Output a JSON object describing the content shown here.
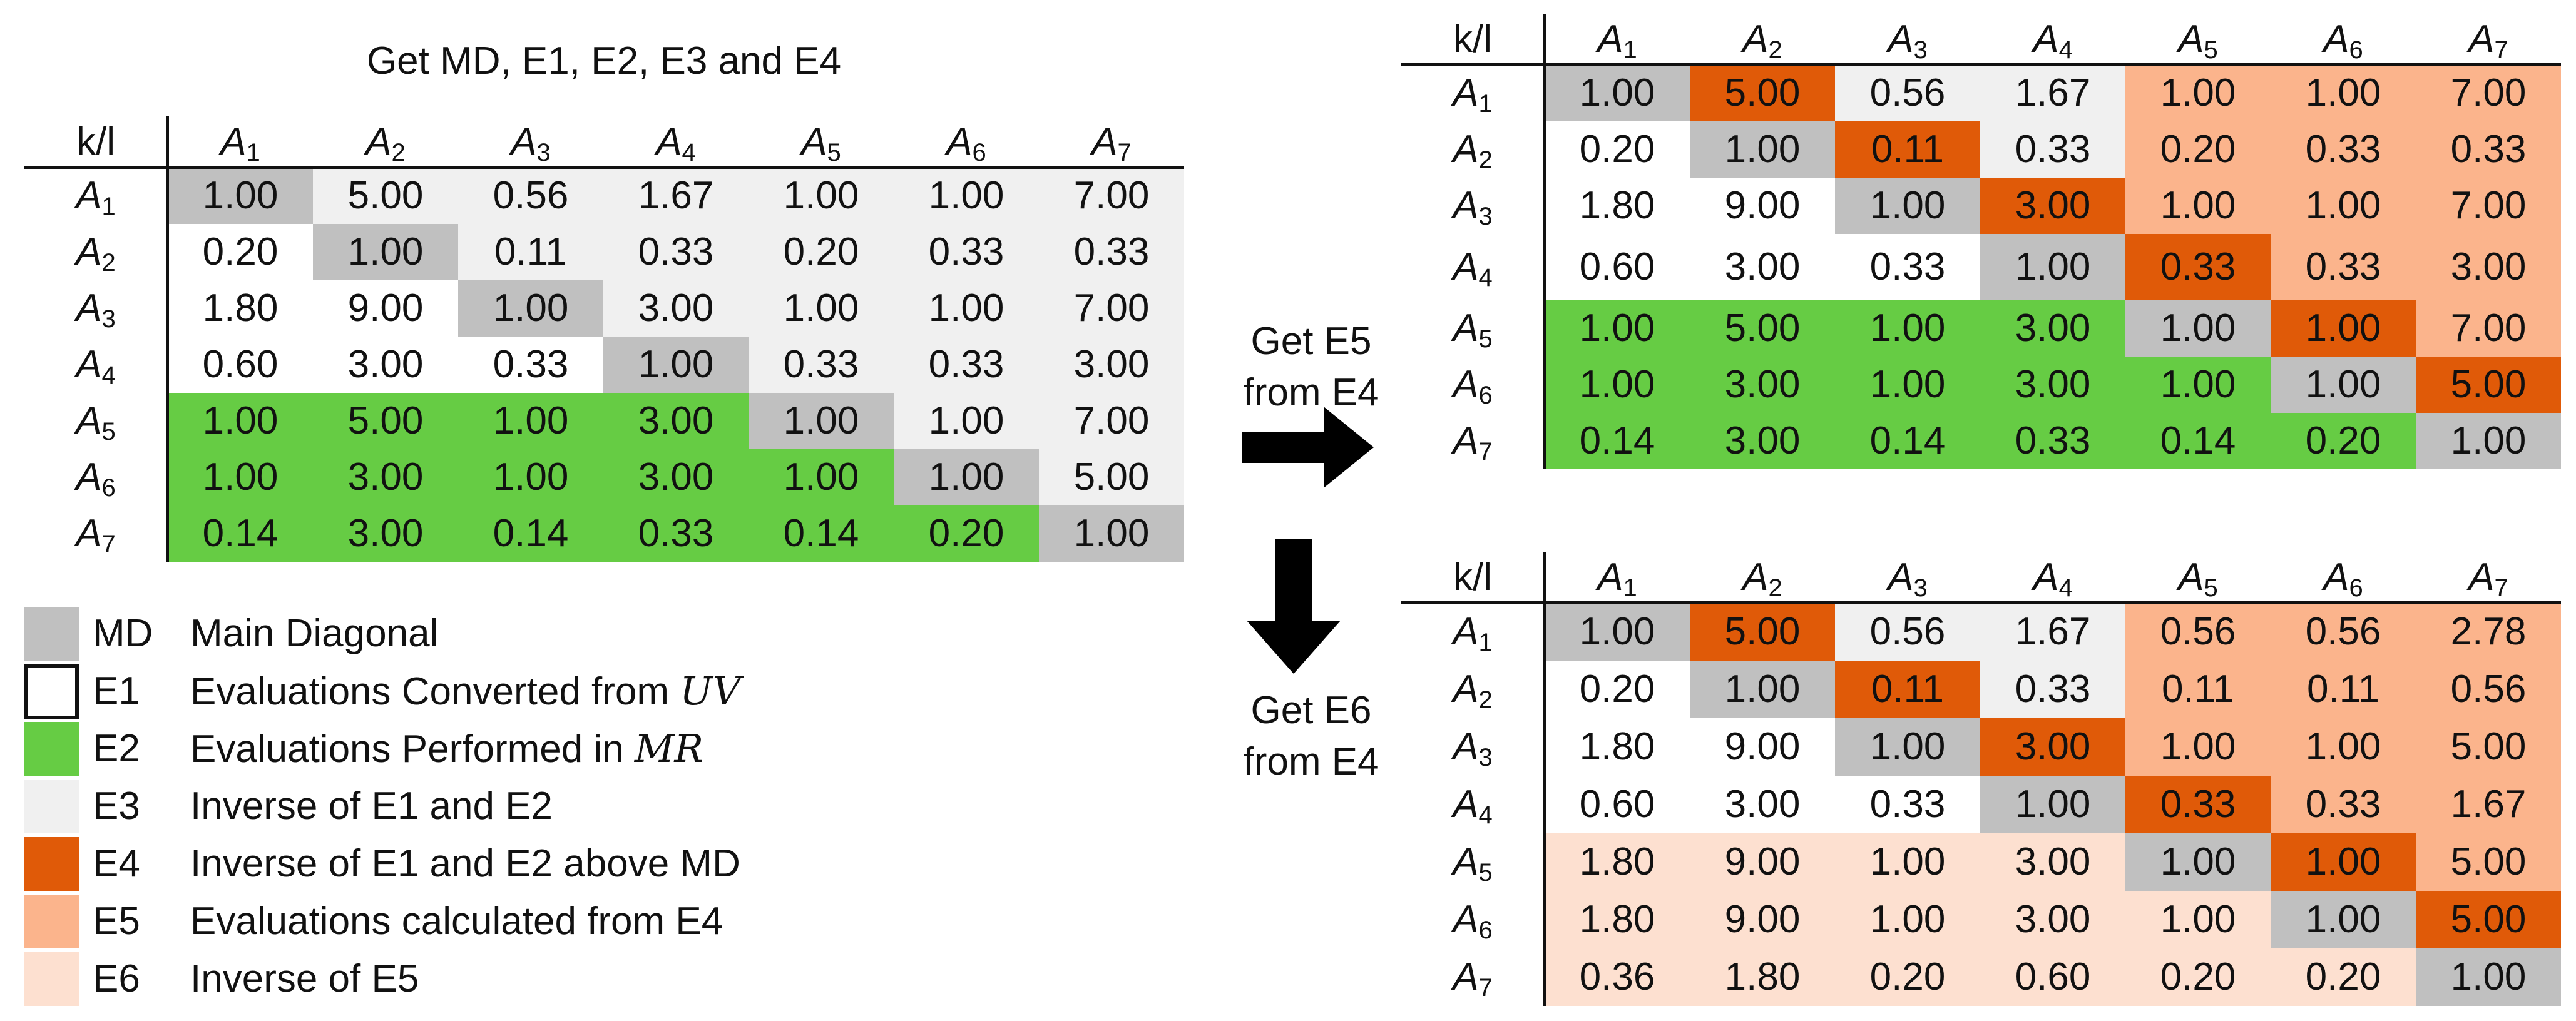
{
  "left_title": "Get MD, E1, E2, E3 and E4",
  "header_corner": "k/l",
  "columns": [
    "A1",
    "A2",
    "A3",
    "A4",
    "A5",
    "A6",
    "A7"
  ],
  "rows": [
    "A1",
    "A2",
    "A3",
    "A4",
    "A5",
    "A6",
    "A7"
  ],
  "colors": {
    "MD": "#c0c0c0",
    "E1": "#ffffff",
    "E2": "#66cc44",
    "E3": "#f0f0f0",
    "E4": "#e05a08",
    "E5": "#fbb48c",
    "E6": "#fde0d0"
  },
  "matrix_main": {
    "values": [
      [
        "1.00",
        "5.00",
        "0.56",
        "1.67",
        "1.00",
        "1.00",
        "7.00"
      ],
      [
        "0.20",
        "1.00",
        "0.11",
        "0.33",
        "0.20",
        "0.33",
        "0.33"
      ],
      [
        "1.80",
        "9.00",
        "1.00",
        "3.00",
        "1.00",
        "1.00",
        "7.00"
      ],
      [
        "0.60",
        "3.00",
        "0.33",
        "1.00",
        "0.33",
        "0.33",
        "3.00"
      ],
      [
        "1.00",
        "5.00",
        "1.00",
        "3.00",
        "1.00",
        "1.00",
        "7.00"
      ],
      [
        "1.00",
        "3.00",
        "1.00",
        "3.00",
        "1.00",
        "1.00",
        "5.00"
      ],
      [
        "0.14",
        "3.00",
        "0.14",
        "0.33",
        "0.14",
        "0.20",
        "1.00"
      ]
    ],
    "categories": [
      [
        "MD",
        "E3",
        "E3",
        "E3",
        "E3",
        "E3",
        "E3"
      ],
      [
        "E1",
        "MD",
        "E3",
        "E3",
        "E3",
        "E3",
        "E3"
      ],
      [
        "E1",
        "E1",
        "MD",
        "E3",
        "E3",
        "E3",
        "E3"
      ],
      [
        "E1",
        "E1",
        "E1",
        "MD",
        "E3",
        "E3",
        "E3"
      ],
      [
        "E2",
        "E2",
        "E2",
        "E2",
        "MD",
        "E3",
        "E3"
      ],
      [
        "E2",
        "E2",
        "E2",
        "E2",
        "E2",
        "MD",
        "E3"
      ],
      [
        "E2",
        "E2",
        "E2",
        "E2",
        "E2",
        "E2",
        "MD"
      ]
    ]
  },
  "matrix_e5": {
    "values": [
      [
        "1.00",
        "5.00",
        "0.56",
        "1.67",
        "1.00",
        "1.00",
        "7.00"
      ],
      [
        "0.20",
        "1.00",
        "0.11",
        "0.33",
        "0.20",
        "0.33",
        "0.33"
      ],
      [
        "1.80",
        "9.00",
        "1.00",
        "3.00",
        "1.00",
        "1.00",
        "7.00"
      ],
      [
        "0.60",
        "3.00",
        "0.33",
        "1.00",
        "0.33",
        "0.33",
        "3.00"
      ],
      [
        "1.00",
        "5.00",
        "1.00",
        "3.00",
        "1.00",
        "1.00",
        "7.00"
      ],
      [
        "1.00",
        "3.00",
        "1.00",
        "3.00",
        "1.00",
        "1.00",
        "5.00"
      ],
      [
        "0.14",
        "3.00",
        "0.14",
        "0.33",
        "0.14",
        "0.20",
        "1.00"
      ]
    ],
    "categories": [
      [
        "MD",
        "E4",
        "E3",
        "E3",
        "E5",
        "E5",
        "E5"
      ],
      [
        "E1",
        "MD",
        "E4",
        "E3",
        "E5",
        "E5",
        "E5"
      ],
      [
        "E1",
        "E1",
        "MD",
        "E4",
        "E5",
        "E5",
        "E5"
      ],
      [
        "E1",
        "E1",
        "E1",
        "MD",
        "E4",
        "E5",
        "E5"
      ],
      [
        "E2",
        "E2",
        "E2",
        "E2",
        "MD",
        "E4",
        "E5"
      ],
      [
        "E2",
        "E2",
        "E2",
        "E2",
        "E2",
        "MD",
        "E4"
      ],
      [
        "E2",
        "E2",
        "E2",
        "E2",
        "E2",
        "E2",
        "MD"
      ]
    ]
  },
  "matrix_e6": {
    "values": [
      [
        "1.00",
        "5.00",
        "0.56",
        "1.67",
        "0.56",
        "0.56",
        "2.78"
      ],
      [
        "0.20",
        "1.00",
        "0.11",
        "0.33",
        "0.11",
        "0.11",
        "0.56"
      ],
      [
        "1.80",
        "9.00",
        "1.00",
        "3.00",
        "1.00",
        "1.00",
        "5.00"
      ],
      [
        "0.60",
        "3.00",
        "0.33",
        "1.00",
        "0.33",
        "0.33",
        "1.67"
      ],
      [
        "1.80",
        "9.00",
        "1.00",
        "3.00",
        "1.00",
        "1.00",
        "5.00"
      ],
      [
        "1.80",
        "9.00",
        "1.00",
        "3.00",
        "1.00",
        "1.00",
        "5.00"
      ],
      [
        "0.36",
        "1.80",
        "0.20",
        "0.60",
        "0.20",
        "0.20",
        "1.00"
      ]
    ],
    "categories": [
      [
        "MD",
        "E4",
        "E3",
        "E3",
        "E5",
        "E5",
        "E5"
      ],
      [
        "E1",
        "MD",
        "E4",
        "E3",
        "E5",
        "E5",
        "E5"
      ],
      [
        "E1",
        "E1",
        "MD",
        "E4",
        "E5",
        "E5",
        "E5"
      ],
      [
        "E1",
        "E1",
        "E1",
        "MD",
        "E4",
        "E5",
        "E5"
      ],
      [
        "E6",
        "E6",
        "E6",
        "E6",
        "MD",
        "E4",
        "E5"
      ],
      [
        "E6",
        "E6",
        "E6",
        "E6",
        "E6",
        "MD",
        "E4"
      ],
      [
        "E6",
        "E6",
        "E6",
        "E6",
        "E6",
        "E6",
        "MD"
      ]
    ]
  },
  "arrow_right_label": {
    "line1": "Get E5",
    "line2": "from E4"
  },
  "arrow_down_label": {
    "line1": "Get E6",
    "line2": "from E4"
  },
  "legend": [
    {
      "code": "MD",
      "text": "Main Diagonal",
      "math": ""
    },
    {
      "code": "E1",
      "text": "Evaluations Converted from ",
      "math": "UV"
    },
    {
      "code": "E2",
      "text": "Evaluations Performed in ",
      "math": "MR"
    },
    {
      "code": "E3",
      "text": "Inverse of E1 and E2",
      "math": ""
    },
    {
      "code": "E4",
      "text": "Inverse of E1 and E2 above MD",
      "math": ""
    },
    {
      "code": "E5",
      "text": "Evaluations calculated from E4",
      "math": ""
    },
    {
      "code": "E6",
      "text": "Inverse of E5",
      "math": ""
    }
  ]
}
